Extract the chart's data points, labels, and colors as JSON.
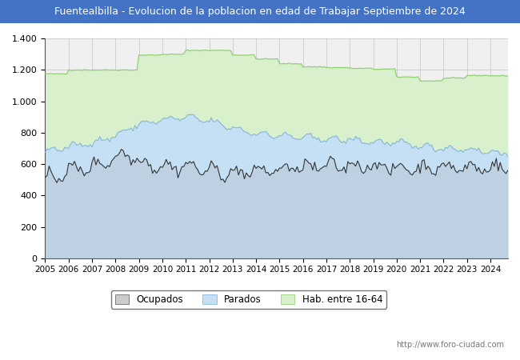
{
  "title": "Fuentealbilla - Evolucion de la poblacion en edad de Trabajar Septiembre de 2024",
  "title_bg": "#4472c4",
  "title_color": "#ffffff",
  "ylim": [
    0,
    1400
  ],
  "yticks": [
    0,
    200,
    400,
    600,
    800,
    1000,
    1200,
    1400
  ],
  "ytick_labels": [
    "0",
    "200",
    "400",
    "600",
    "800",
    "1.000",
    "1.200",
    "1.400"
  ],
  "xmin": 2005,
  "xmax": 2024.75,
  "color_ocupados_line": "#333333",
  "color_ocupados_fill": "#aaaaaa",
  "color_parados_fill": "#c5dff5",
  "color_parados_line": "#7ab0d8",
  "color_hab_fill": "#d8f0cc",
  "color_hab_line": "#88cc66",
  "legend_labels": [
    "Ocupados",
    "Parados",
    "Hab. entre 16-64"
  ],
  "url_text": "http://www.foro-ciudad.com",
  "grid_color": "#cccccc",
  "background_color": "#ffffff",
  "plot_bg": "#f0f0f0"
}
